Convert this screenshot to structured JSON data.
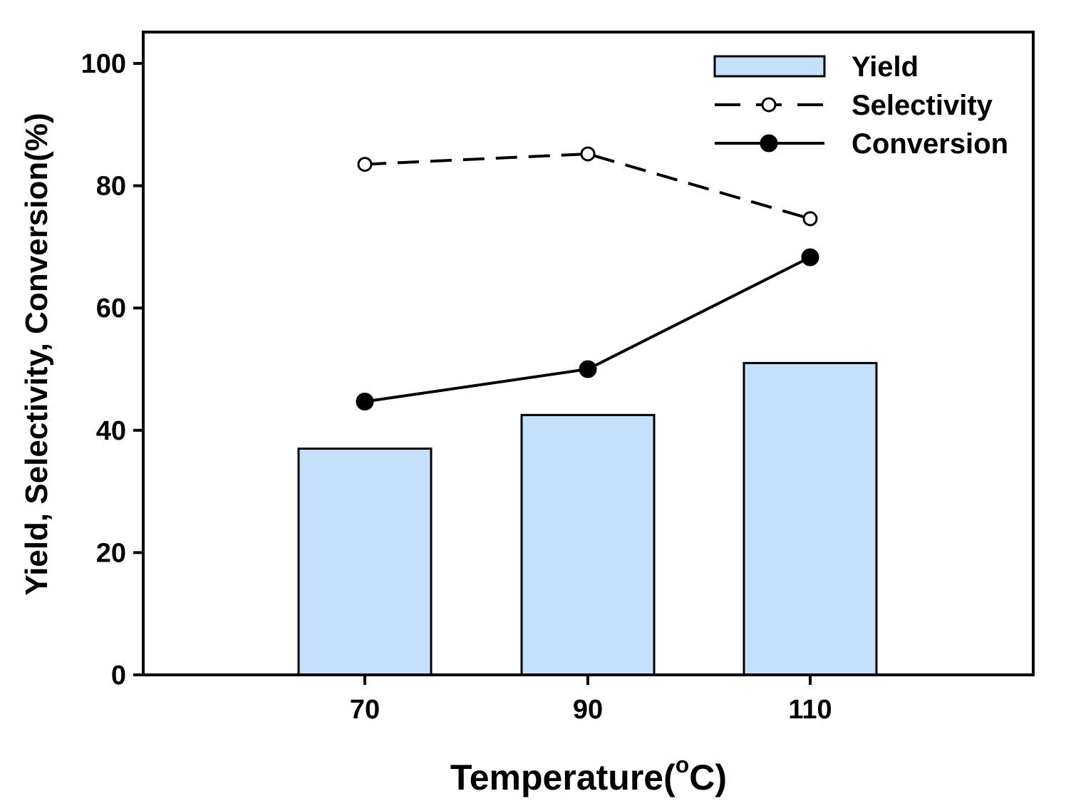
{
  "chart_data": {
    "type": "bar",
    "title": "",
    "xlabel_main": "Temperature(",
    "xlabel_degree": "o",
    "xlabel_unit": "C)",
    "ylabel": "Yield, Selectivity, Conversion(%)",
    "categories": [
      "70",
      "90",
      "110"
    ],
    "ylim": [
      0,
      100
    ],
    "yticks": [
      "0",
      "20",
      "40",
      "60",
      "80",
      "100"
    ],
    "grid": false,
    "legend_position": "top-right",
    "series": [
      {
        "name": "Yield",
        "kind": "bar",
        "values": [
          37,
          42.5,
          51
        ],
        "color": "#c5e0fa"
      },
      {
        "name": "Selectivity",
        "kind": "line",
        "style": "dashed",
        "marker": "open-circle",
        "values": [
          83.5,
          85.2,
          74.6
        ]
      },
      {
        "name": "Conversion",
        "kind": "line",
        "style": "solid",
        "marker": "filled-circle",
        "values": [
          44.7,
          50,
          68.3
        ]
      }
    ]
  }
}
